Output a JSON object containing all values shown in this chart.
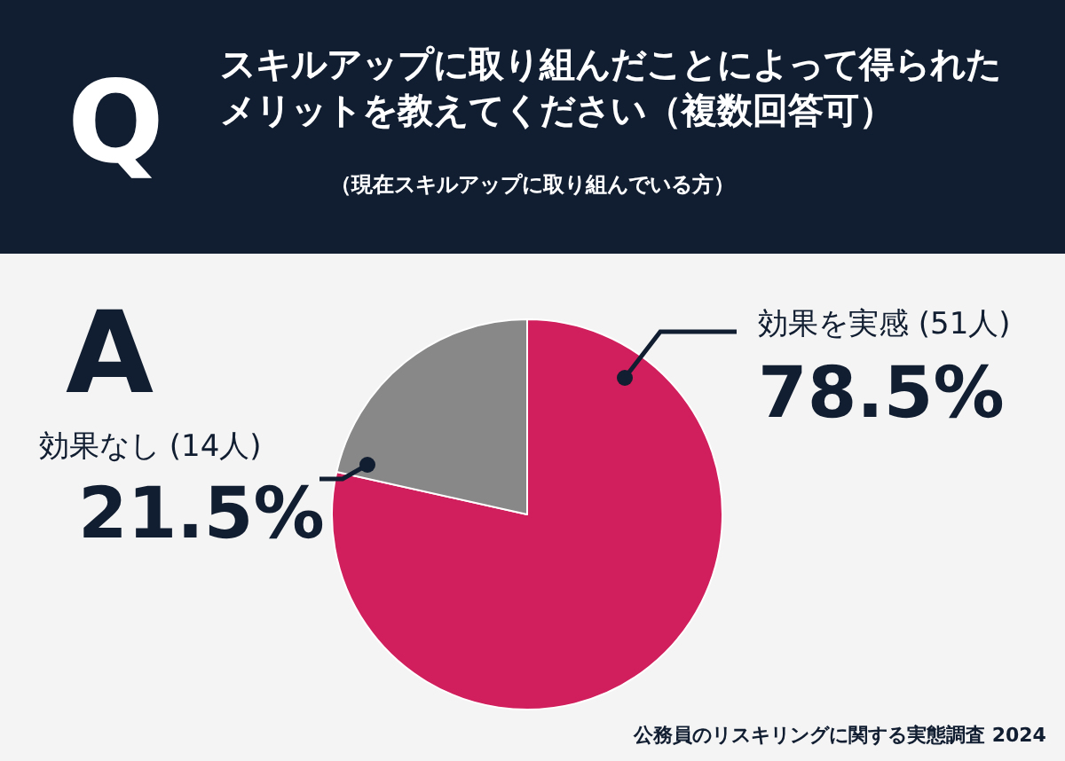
{
  "chart_data": {
    "type": "pie",
    "title": "スキルアップに取り組んだことによって得られたメリットを教えてください（複数回答可）",
    "subtitle": "（現在スキルアップに取り組んでいる方）",
    "categories": [
      "効果を実感 (51人)",
      "効果なし (14人)"
    ],
    "values": [
      78.5,
      21.5
    ],
    "colors": [
      "#d01f5c",
      "#888888"
    ],
    "value_labels": [
      "78.5%",
      "21.5%"
    ],
    "annotations": [
      "Q",
      "A",
      "公務員のリスキリングに関する実態調査 2024"
    ]
  }
}
